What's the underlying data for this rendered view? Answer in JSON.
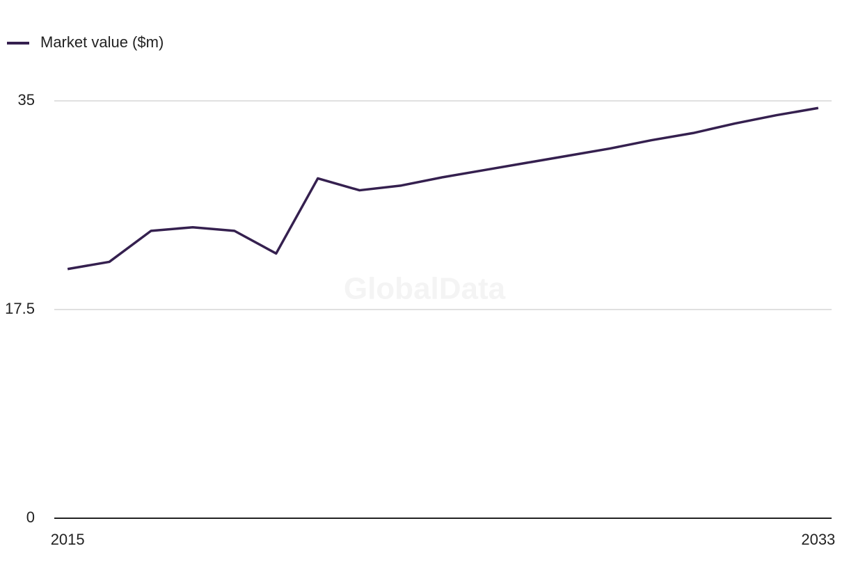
{
  "chart_data": {
    "type": "line",
    "watermark": "GlobalData",
    "x": [
      2015,
      2016,
      2017,
      2018,
      2019,
      2020,
      2021,
      2022,
      2023,
      2024,
      2025,
      2026,
      2027,
      2028,
      2029,
      2030,
      2031,
      2032,
      2033
    ],
    "series": [
      {
        "name": "Market value ($m)",
        "color": "#35204f",
        "values": [
          20.9,
          21.5,
          24.1,
          24.4,
          24.1,
          22.2,
          28.5,
          27.5,
          27.9,
          28.6,
          29.2,
          29.8,
          30.4,
          31.0,
          31.7,
          32.3,
          33.1,
          33.8,
          34.4
        ]
      }
    ],
    "xlim": [
      2014.68,
      2033.32
    ],
    "xticks": [
      2015,
      2033
    ],
    "ylim": [
      0,
      35
    ],
    "yticks": [
      0,
      17.5,
      35
    ],
    "grid": true,
    "legend": "top-left"
  }
}
